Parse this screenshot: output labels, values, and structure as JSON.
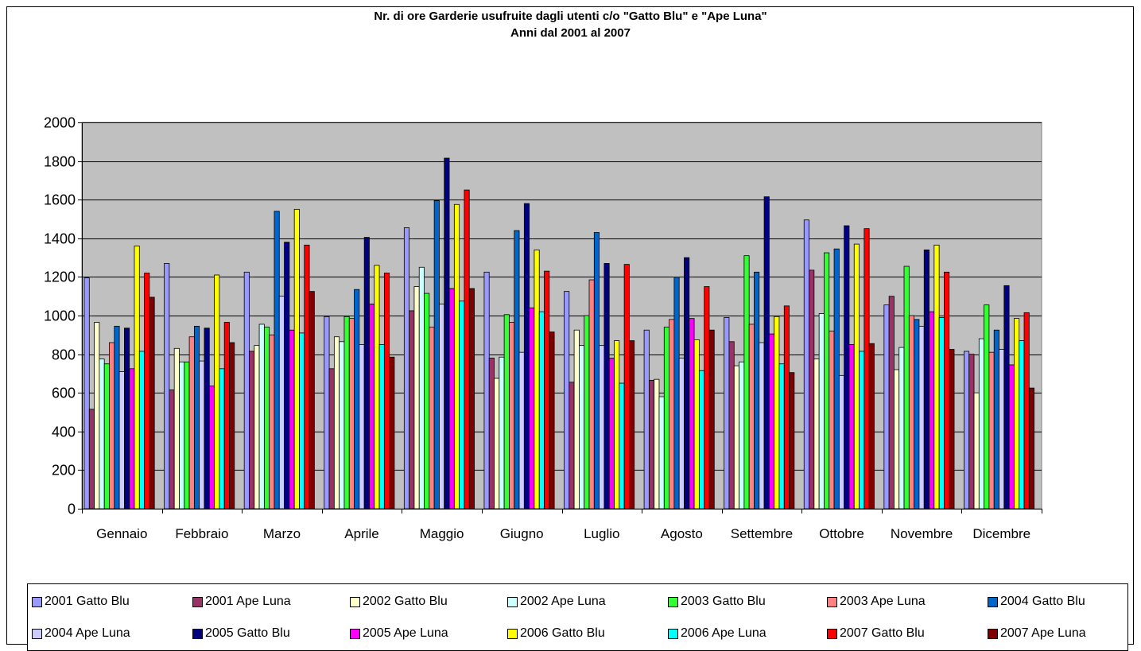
{
  "chart_data": {
    "type": "bar",
    "title": "Nr. di ore Garderie usufruite dagli utenti c/o \"Gatto Blu\" e \"Ape Luna\"",
    "subtitle": "Anni dal 2001 al 2007",
    "xlabel": "",
    "ylabel": "",
    "ylim": [
      0,
      2000
    ],
    "yticks": [
      "0",
      "200",
      "400",
      "600",
      "800",
      "1000",
      "1200",
      "1400",
      "1600",
      "1800",
      "2000"
    ],
    "grid": true,
    "legend_position": "bottom",
    "background": "#c0c0c0",
    "categories": [
      "Gennaio",
      "Febbraio",
      "Marzo",
      "Aprile",
      "Maggio",
      "Giugno",
      "Luglio",
      "Agosto",
      "Settembre",
      "Ottobre",
      "Novembre",
      "Dicembre"
    ],
    "series": [
      {
        "name": "2001 Gatto Blu",
        "color": "#9999ff",
        "values": [
          1195,
          1270,
          1225,
          995,
          1455,
          1225,
          1125,
          925,
          990,
          1495,
          1055,
          815
        ]
      },
      {
        "name": "2001 Ape Luna",
        "color": "#993366",
        "values": [
          515,
          615,
          815,
          725,
          1025,
          780,
          655,
          665,
          865,
          1235,
          1100,
          800
        ]
      },
      {
        "name": "2002 Gatto Blu",
        "color": "#ffffcc",
        "values": [
          965,
          830,
          845,
          890,
          1150,
          675,
          925,
          670,
          740,
          775,
          720,
          600
        ]
      },
      {
        "name": "2002 Ape Luna",
        "color": "#ccffff",
        "values": [
          775,
          760,
          955,
          865,
          1250,
          785,
          845,
          580,
          760,
          1010,
          835,
          880
        ]
      },
      {
        "name": "2003 Gatto Blu",
        "color": "#33ff33",
        "values": [
          750,
          760,
          940,
          995,
          1115,
          1005,
          1000,
          940,
          1310,
          1325,
          1255,
          1055
        ]
      },
      {
        "name": "2003 Ape Luna",
        "color": "#ff8080",
        "values": [
          860,
          890,
          900,
          985,
          940,
          965,
          1185,
          980,
          955,
          920,
          1000,
          810
        ]
      },
      {
        "name": "2004 Gatto Blu",
        "color": "#0066cc",
        "values": [
          945,
          945,
          1540,
          1135,
          1595,
          1440,
          1430,
          1200,
          1225,
          1345,
          980,
          925
        ]
      },
      {
        "name": "2004 Ape Luna",
        "color": "#ccccff",
        "values": [
          710,
          765,
          1100,
          850,
          1060,
          810,
          845,
          780,
          860,
          690,
          945,
          825
        ]
      },
      {
        "name": "2005 Gatto Blu",
        "color": "#000080",
        "values": [
          935,
          935,
          1380,
          1405,
          1815,
          1580,
          1270,
          1300,
          1615,
          1465,
          1340,
          1155
        ]
      },
      {
        "name": "2005 Ape Luna",
        "color": "#ff00ff",
        "values": [
          725,
          635,
          925,
          1060,
          1140,
          1040,
          780,
          985,
          905,
          850,
          1020,
          745
        ]
      },
      {
        "name": "2006 Gatto Blu",
        "color": "#ffff00",
        "values": [
          1360,
          1210,
          1550,
          1260,
          1575,
          1340,
          870,
          875,
          995,
          1370,
          1365,
          985
        ]
      },
      {
        "name": "2006 Ape Luna",
        "color": "#00ffff",
        "values": [
          815,
          725,
          910,
          850,
          1075,
          1020,
          650,
          715,
          750,
          815,
          990,
          870
        ]
      },
      {
        "name": "2007 Gatto Blu",
        "color": "#ff0000",
        "values": [
          1220,
          965,
          1365,
          1220,
          1650,
          1230,
          1265,
          1150,
          1050,
          1450,
          1225,
          1015
        ]
      },
      {
        "name": "2007 Ape Luna",
        "color": "#800000",
        "values": [
          1095,
          860,
          1125,
          785,
          1140,
          915,
          870,
          925,
          705,
          855,
          825,
          625
        ]
      }
    ]
  }
}
